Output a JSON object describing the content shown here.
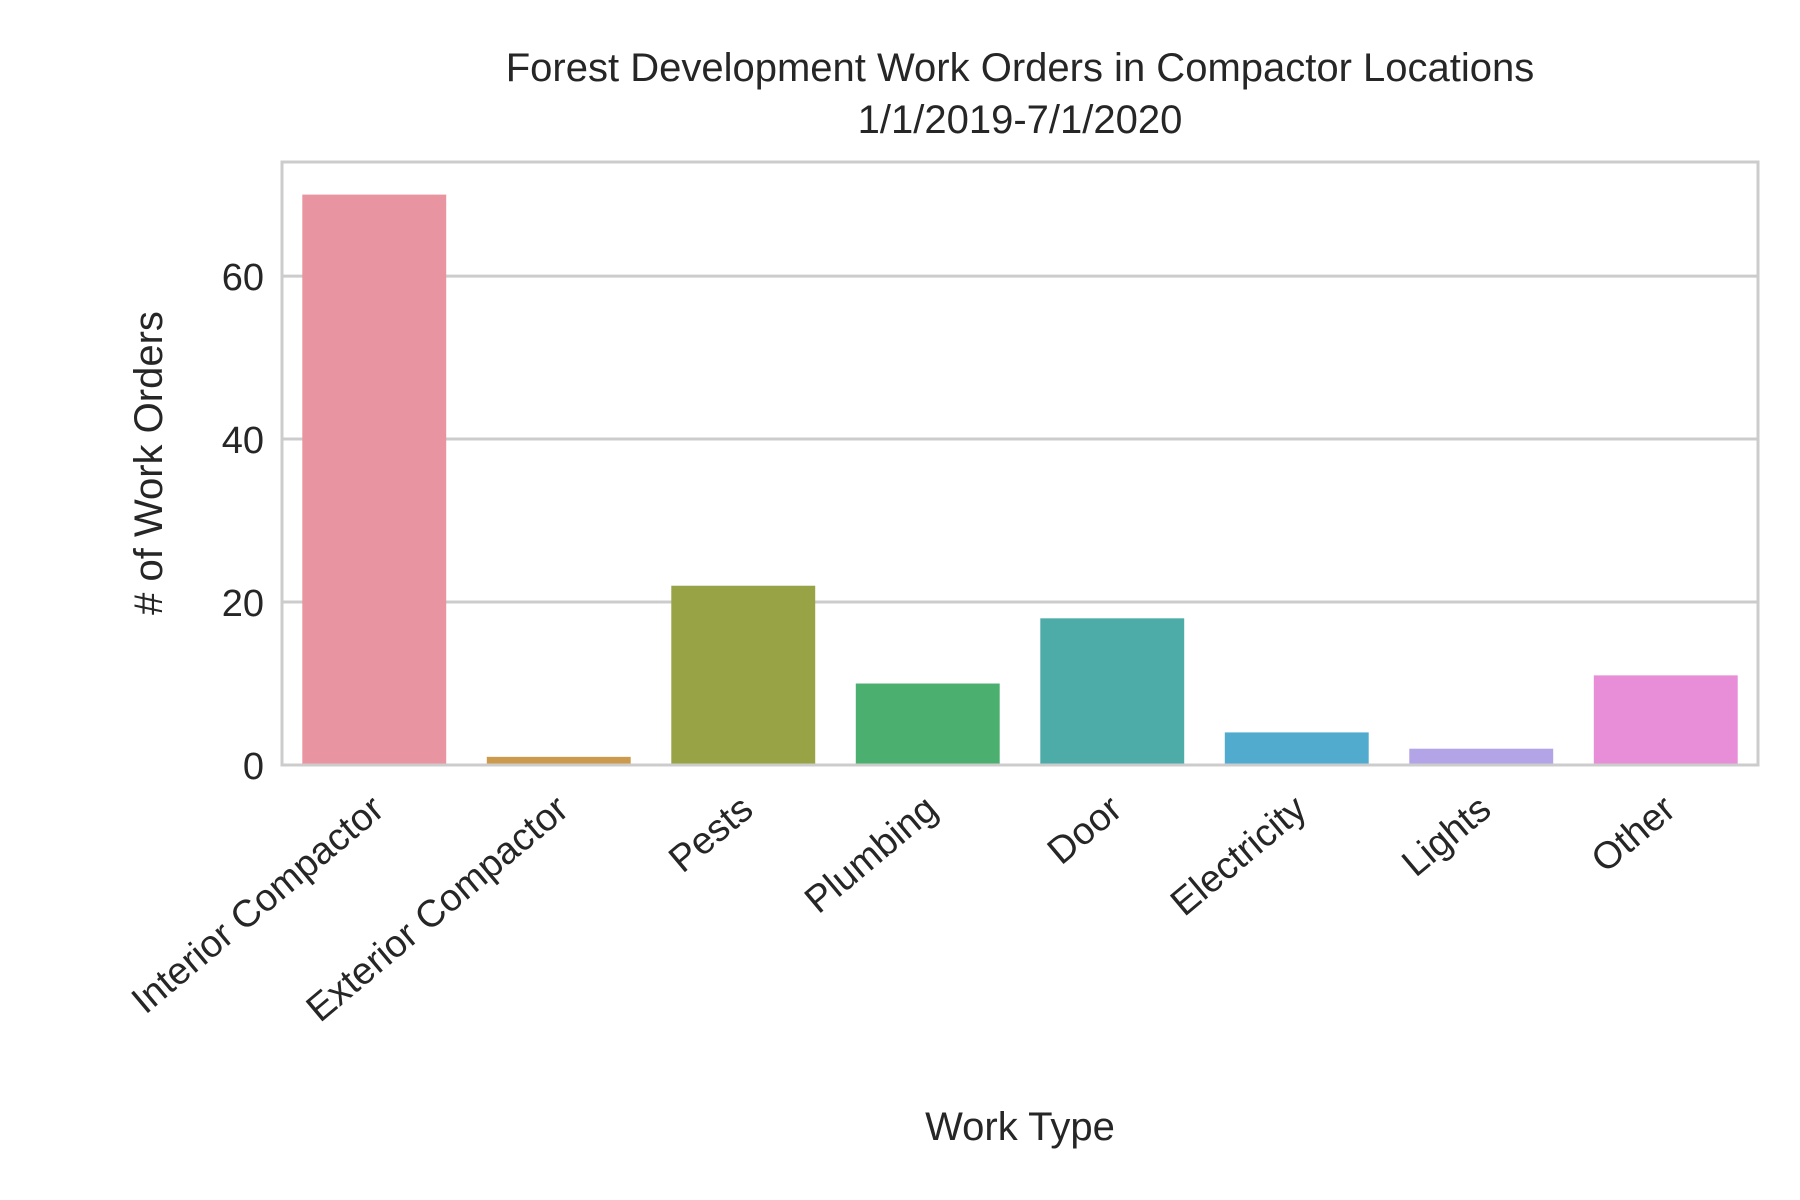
{
  "chart_data": {
    "type": "bar",
    "title": "Forest Development Work Orders in Compactor Locations",
    "subtitle": "1/1/2019-7/1/2020",
    "xlabel": "Work Type",
    "ylabel": "# of Work Orders",
    "categories": [
      "Interior Compactor",
      "Exterior Compactor",
      "Pests",
      "Plumbing",
      "Door",
      "Electricity",
      "Lights",
      "Other"
    ],
    "values": [
      70,
      1,
      22,
      10,
      18,
      4,
      2,
      11
    ],
    "colors": [
      "#e995a1",
      "#cc9a4c",
      "#98a346",
      "#4bb06f",
      "#4daca7",
      "#51abcf",
      "#b3a4e8",
      "#e88dd7"
    ],
    "ylim": [
      0,
      74
    ],
    "yticks": [
      0,
      20,
      40,
      60
    ],
    "grid": true,
    "legend": "none",
    "style": {
      "background": "#ffffff",
      "frame_color": "#cccccc",
      "grid_color": "#cccccc",
      "text_color": "#262626"
    }
  }
}
